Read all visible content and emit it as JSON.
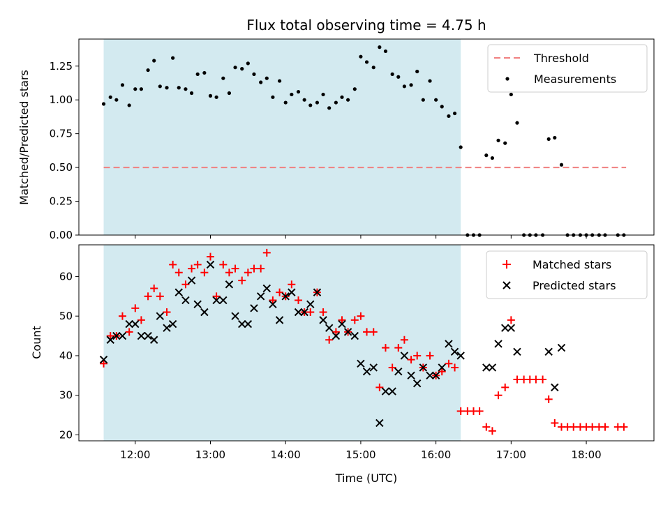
{
  "chart_data": [
    {
      "type": "scatter",
      "title": "Flux total observing time = 4.75 h",
      "xlabel": "",
      "ylabel": "Matched/Predicted stars",
      "ylim": [
        0,
        1.45
      ],
      "yticks": [
        "0.00",
        "0.25",
        "0.50",
        "0.75",
        "1.00",
        "1.25"
      ],
      "shaded_span": [
        11.58,
        16.33
      ],
      "legend_position": "top-right",
      "threshold": {
        "name": "Threshold",
        "value": 0.5,
        "x_range": [
          11.58,
          18.53
        ],
        "color": "#f08080"
      },
      "series": [
        {
          "name": "Measurements",
          "color": "#000000",
          "x": [
            11.58,
            11.67,
            11.75,
            11.83,
            11.92,
            12.0,
            12.08,
            12.17,
            12.25,
            12.33,
            12.42,
            12.5,
            12.58,
            12.67,
            12.75,
            12.83,
            12.92,
            13.0,
            13.08,
            13.17,
            13.25,
            13.33,
            13.42,
            13.5,
            13.58,
            13.67,
            13.75,
            13.83,
            13.92,
            14.0,
            14.08,
            14.17,
            14.25,
            14.33,
            14.42,
            14.5,
            14.58,
            14.67,
            14.75,
            14.83,
            14.92,
            15.0,
            15.08,
            15.17,
            15.25,
            15.33,
            15.42,
            15.5,
            15.58,
            15.67,
            15.75,
            15.83,
            15.92,
            16.0,
            16.08,
            16.17,
            16.25,
            16.33,
            16.42,
            16.5,
            16.58,
            16.67,
            16.75,
            16.83,
            16.92,
            17.0,
            17.08,
            17.17,
            17.25,
            17.33,
            17.42,
            17.5,
            17.58,
            17.67,
            17.75,
            17.83,
            17.92,
            18.0,
            18.08,
            18.17,
            18.25,
            18.42,
            18.5
          ],
          "y": [
            0.97,
            1.02,
            1.0,
            1.11,
            0.96,
            1.08,
            1.08,
            1.22,
            1.29,
            1.1,
            1.09,
            1.31,
            1.09,
            1.08,
            1.05,
            1.19,
            1.2,
            1.03,
            1.02,
            1.16,
            1.05,
            1.24,
            1.23,
            1.27,
            1.19,
            1.13,
            1.16,
            1.02,
            1.14,
            0.98,
            1.04,
            1.06,
            1.0,
            0.96,
            0.98,
            1.04,
            0.94,
            0.98,
            1.02,
            1.0,
            1.08,
            1.32,
            1.28,
            1.24,
            1.39,
            1.36,
            1.19,
            1.17,
            1.1,
            1.11,
            1.21,
            1.0,
            1.14,
            1.0,
            0.95,
            0.88,
            0.9,
            0.65,
            0,
            0,
            0,
            0.59,
            0.57,
            0.7,
            0.68,
            1.04,
            0.83,
            0,
            0,
            0,
            0,
            0.71,
            0.72,
            0.52,
            0,
            0,
            0,
            0,
            0,
            0,
            0,
            0,
            0
          ]
        }
      ]
    },
    {
      "type": "scatter",
      "title": "",
      "xlabel": "Time (UTC)",
      "ylabel": "Count",
      "ylim": [
        18.5,
        68
      ],
      "yticks": [
        "20",
        "30",
        "40",
        "50",
        "60"
      ],
      "xticks": [
        "12:00",
        "13:00",
        "14:00",
        "15:00",
        "16:00",
        "17:00",
        "18:00"
      ],
      "xlim": [
        11.25,
        18.9
      ],
      "shaded_span": [
        11.58,
        16.33
      ],
      "legend_position": "top-right",
      "series": [
        {
          "name": "Matched stars",
          "marker": "plus",
          "color": "#ff0000",
          "x": [
            11.58,
            11.67,
            11.75,
            11.83,
            11.92,
            12.0,
            12.08,
            12.17,
            12.25,
            12.33,
            12.42,
            12.5,
            12.58,
            12.67,
            12.75,
            12.83,
            12.92,
            13.0,
            13.08,
            13.17,
            13.25,
            13.33,
            13.42,
            13.5,
            13.58,
            13.67,
            13.75,
            13.83,
            13.92,
            14.0,
            14.08,
            14.17,
            14.25,
            14.33,
            14.42,
            14.5,
            14.58,
            14.67,
            14.75,
            14.83,
            14.92,
            15.0,
            15.08,
            15.17,
            15.25,
            15.33,
            15.42,
            15.5,
            15.58,
            15.67,
            15.75,
            15.83,
            15.92,
            16.0,
            16.08,
            16.17,
            16.25,
            16.33,
            16.42,
            16.5,
            16.58,
            16.67,
            16.75,
            16.83,
            16.92,
            17.0,
            17.08,
            17.17,
            17.25,
            17.33,
            17.42,
            17.5,
            17.58,
            17.67,
            17.75,
            17.83,
            17.92,
            18.0,
            18.08,
            18.17,
            18.25,
            18.42,
            18.5
          ],
          "y": [
            38,
            45,
            45,
            50,
            46,
            52,
            49,
            55,
            57,
            55,
            51,
            63,
            61,
            58,
            62,
            63,
            61,
            65,
            55,
            63,
            61,
            62,
            59,
            61,
            62,
            62,
            66,
            54,
            56,
            55,
            58,
            54,
            51,
            51,
            56,
            51,
            44,
            46,
            49,
            46,
            49,
            50,
            46,
            46,
            32,
            42,
            37,
            42,
            44,
            39,
            40,
            37,
            40,
            35,
            36,
            38,
            37,
            26,
            26,
            26,
            26,
            22,
            21,
            30,
            32,
            49,
            34,
            34,
            34,
            34,
            34,
            29,
            23,
            22,
            22,
            22,
            22,
            22,
            22,
            22,
            22,
            22,
            22
          ]
        },
        {
          "name": "Predicted stars",
          "marker": "x",
          "color": "#000000",
          "x": [
            11.58,
            11.67,
            11.75,
            11.83,
            11.92,
            12.0,
            12.08,
            12.17,
            12.25,
            12.33,
            12.42,
            12.5,
            12.58,
            12.67,
            12.75,
            12.83,
            12.92,
            13.0,
            13.08,
            13.17,
            13.25,
            13.33,
            13.42,
            13.5,
            13.58,
            13.67,
            13.75,
            13.83,
            13.92,
            14.0,
            14.08,
            14.17,
            14.25,
            14.33,
            14.42,
            14.5,
            14.58,
            14.67,
            14.75,
            14.83,
            14.92,
            15.0,
            15.08,
            15.17,
            15.25,
            15.33,
            15.42,
            15.5,
            15.58,
            15.67,
            15.75,
            15.83,
            15.92,
            16.0,
            16.08,
            16.17,
            16.25,
            16.33,
            16.67,
            16.75,
            16.83,
            16.92,
            17.0,
            17.08,
            17.5,
            17.58,
            17.67
          ],
          "y": [
            39,
            44,
            45,
            45,
            48,
            48,
            45,
            45,
            44,
            50,
            47,
            48,
            56,
            54,
            59,
            53,
            51,
            63,
            54,
            54,
            58,
            50,
            48,
            48,
            52,
            55,
            57,
            53,
            49,
            55,
            56,
            51,
            51,
            53,
            56,
            49,
            47,
            45,
            48,
            46,
            45,
            38,
            36,
            37,
            23,
            31,
            31,
            36,
            40,
            35,
            33,
            37,
            35,
            35,
            37,
            43,
            41,
            40,
            37,
            37,
            43,
            47,
            47,
            41,
            41,
            32,
            42
          ]
        }
      ]
    }
  ]
}
